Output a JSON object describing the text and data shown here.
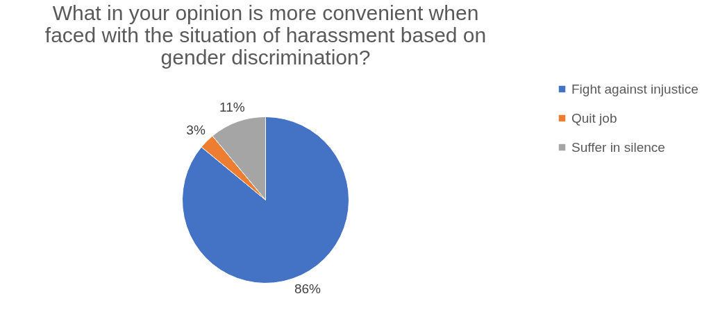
{
  "chart_data": {
    "type": "pie",
    "title": "What in your opinion is more convenient when faced with the situation of harassment based on gender discrimination?",
    "categories": [
      "Fight against injustice",
      "Quit job",
      "Suffer in silence"
    ],
    "values": [
      86,
      3,
      11
    ],
    "colors": [
      "#4472c4",
      "#ed7d31",
      "#a5a5a5"
    ],
    "value_labels": [
      "86%",
      "3%",
      "11%"
    ],
    "legend": "right"
  }
}
